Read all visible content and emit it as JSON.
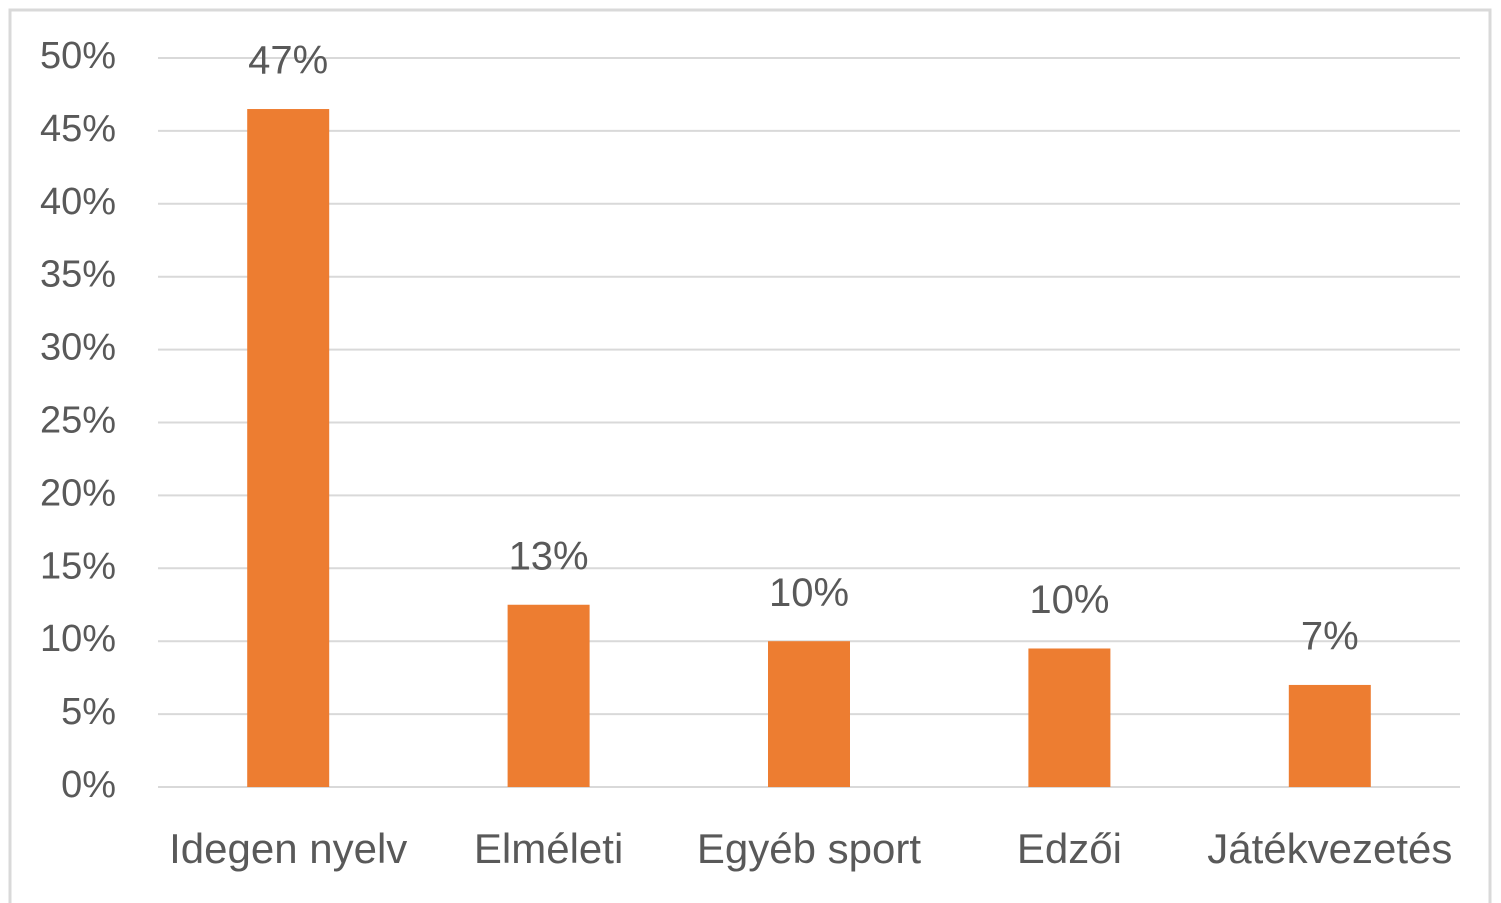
{
  "chart_data": {
    "type": "bar",
    "categories": [
      "Idegen nyelv",
      "Elméleti",
      "Egyéb sport",
      "Edzői",
      "Játékvezetés"
    ],
    "values": [
      46.5,
      12.5,
      10,
      9.5,
      7
    ],
    "value_labels": [
      "47%",
      "13%",
      "10%",
      "10%",
      "7%"
    ],
    "color": "#ed7d31",
    "ylim": [
      0,
      50
    ],
    "yticks": [
      {
        "value": 0,
        "label": "0%"
      },
      {
        "value": 5,
        "label": "5%"
      },
      {
        "value": 10,
        "label": "10%"
      },
      {
        "value": 15,
        "label": "15%"
      },
      {
        "value": 20,
        "label": "20%"
      },
      {
        "value": 25,
        "label": "25%"
      },
      {
        "value": 30,
        "label": "30%"
      },
      {
        "value": 35,
        "label": "35%"
      },
      {
        "value": 40,
        "label": "40%"
      },
      {
        "value": 45,
        "label": "45%"
      },
      {
        "value": 50,
        "label": "50%"
      }
    ],
    "grid": true
  }
}
